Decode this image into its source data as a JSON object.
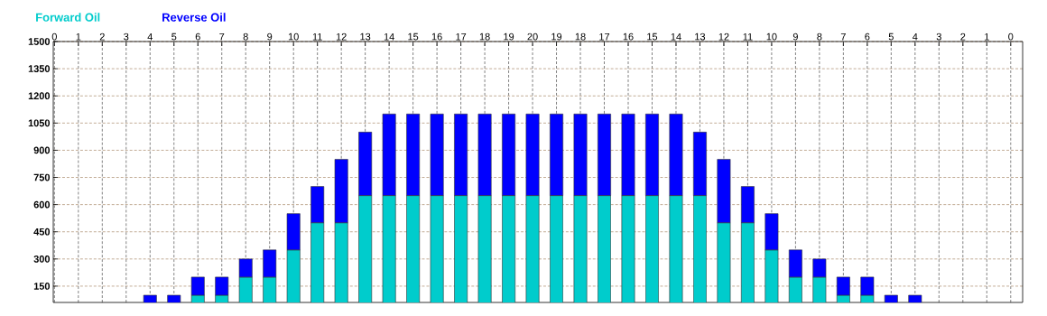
{
  "chart_data": {
    "type": "bar",
    "stacked": true,
    "categories": [
      "0",
      "1",
      "2",
      "3",
      "4",
      "5",
      "6",
      "7",
      "8",
      "9",
      "10",
      "11",
      "12",
      "13",
      "14",
      "15",
      "16",
      "17",
      "18",
      "19",
      "20",
      "19",
      "18",
      "17",
      "16",
      "15",
      "14",
      "13",
      "12",
      "11",
      "10",
      "9",
      "8",
      "7",
      "6",
      "5",
      "4",
      "3",
      "2",
      "1",
      "0"
    ],
    "series": [
      {
        "name": "Forward Oil",
        "color": "#00cccc",
        "values": [
          null,
          null,
          null,
          null,
          null,
          null,
          100,
          100,
          200,
          200,
          350,
          500,
          500,
          650,
          650,
          650,
          650,
          650,
          650,
          650,
          650,
          650,
          650,
          650,
          650,
          650,
          650,
          650,
          500,
          500,
          350,
          200,
          200,
          100,
          100,
          null,
          null,
          null,
          null,
          null,
          null
        ]
      },
      {
        "name": "Reverse Oil",
        "color": "#0000ff",
        "values": [
          null,
          null,
          null,
          null,
          100,
          100,
          100,
          100,
          100,
          150,
          200,
          200,
          350,
          350,
          450,
          450,
          450,
          450,
          450,
          450,
          450,
          450,
          450,
          450,
          450,
          450,
          450,
          350,
          350,
          200,
          200,
          150,
          100,
          100,
          100,
          100,
          100,
          null,
          null,
          null,
          null
        ]
      }
    ],
    "ylim": [
      60,
      1500
    ],
    "yticks": [
      150,
      300,
      450,
      600,
      750,
      900,
      1050,
      1200,
      1350,
      1500
    ],
    "grid": true,
    "legend": "top left"
  }
}
